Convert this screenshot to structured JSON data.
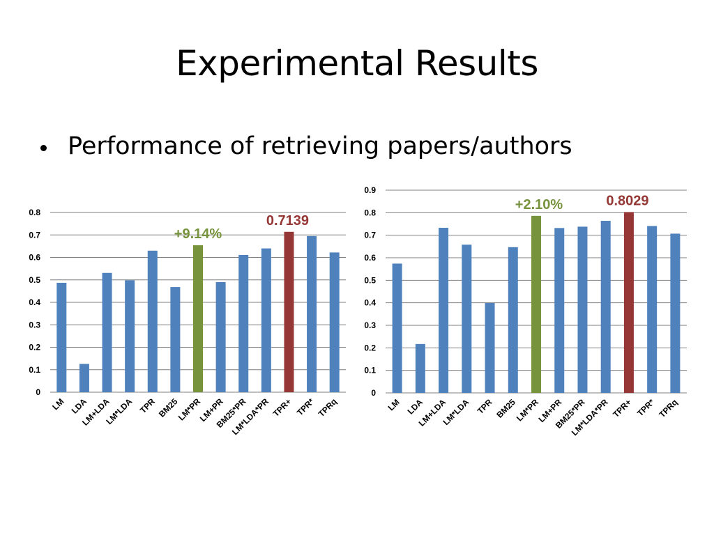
{
  "slide": {
    "title": "Experimental Results",
    "bullet": "Performance of retrieving papers/authors"
  },
  "colors": {
    "default": "#4F81BD",
    "green": "#77933C",
    "red": "#953735",
    "grid": "#7f7f7f"
  },
  "chart_data": [
    {
      "type": "bar",
      "title": "",
      "xlabel": "",
      "ylabel": "",
      "ylim": [
        0,
        0.8
      ],
      "yticks": [
        "0",
        "0.1",
        "0.2",
        "0.3",
        "0.4",
        "0.5",
        "0.6",
        "0.7",
        "0.8"
      ],
      "grid": true,
      "categories": [
        "LM",
        "LDA",
        "LM+LDA",
        "LM*LDA",
        "TPR",
        "BM25",
        "LM*PR",
        "LM+PR",
        "BM25*PR",
        "LM*LDA*PR",
        "TPR+",
        "TPR*",
        "TPRq"
      ],
      "values": [
        0.487,
        0.126,
        0.531,
        0.498,
        0.63,
        0.468,
        0.654,
        0.49,
        0.611,
        0.64,
        0.7139,
        0.695,
        0.622
      ],
      "highlights": {
        "LM*PR": "green",
        "TPR+": "red"
      },
      "annotations": [
        {
          "text": "+9.14%",
          "category": "LM*PR",
          "color": "green"
        },
        {
          "text": "0.7139",
          "category": "TPR+",
          "color": "red"
        }
      ]
    },
    {
      "type": "bar",
      "title": "",
      "xlabel": "",
      "ylabel": "",
      "ylim": [
        0,
        0.9
      ],
      "yticks": [
        "0",
        "0.1",
        "0.2",
        "0.3",
        "0.4",
        "0.5",
        "0.6",
        "0.7",
        "0.8",
        "0.9"
      ],
      "grid": true,
      "categories": [
        "LM",
        "LDA",
        "LM+LDA",
        "LM*LDA",
        "TPR",
        "BM25",
        "LM*PR",
        "LM+PR",
        "BM25*PR",
        "LM*LDA*PR",
        "TPR+",
        "TPR*",
        "TPRq"
      ],
      "values": [
        0.574,
        0.217,
        0.733,
        0.658,
        0.399,
        0.647,
        0.786,
        0.732,
        0.738,
        0.764,
        0.8029,
        0.741,
        0.707
      ],
      "highlights": {
        "LM*PR": "green",
        "TPR+": "red"
      },
      "annotations": [
        {
          "text": "+2.10%",
          "category": "LM*PR",
          "color": "green"
        },
        {
          "text": "0.8029",
          "category": "TPR+",
          "color": "red"
        }
      ]
    }
  ]
}
